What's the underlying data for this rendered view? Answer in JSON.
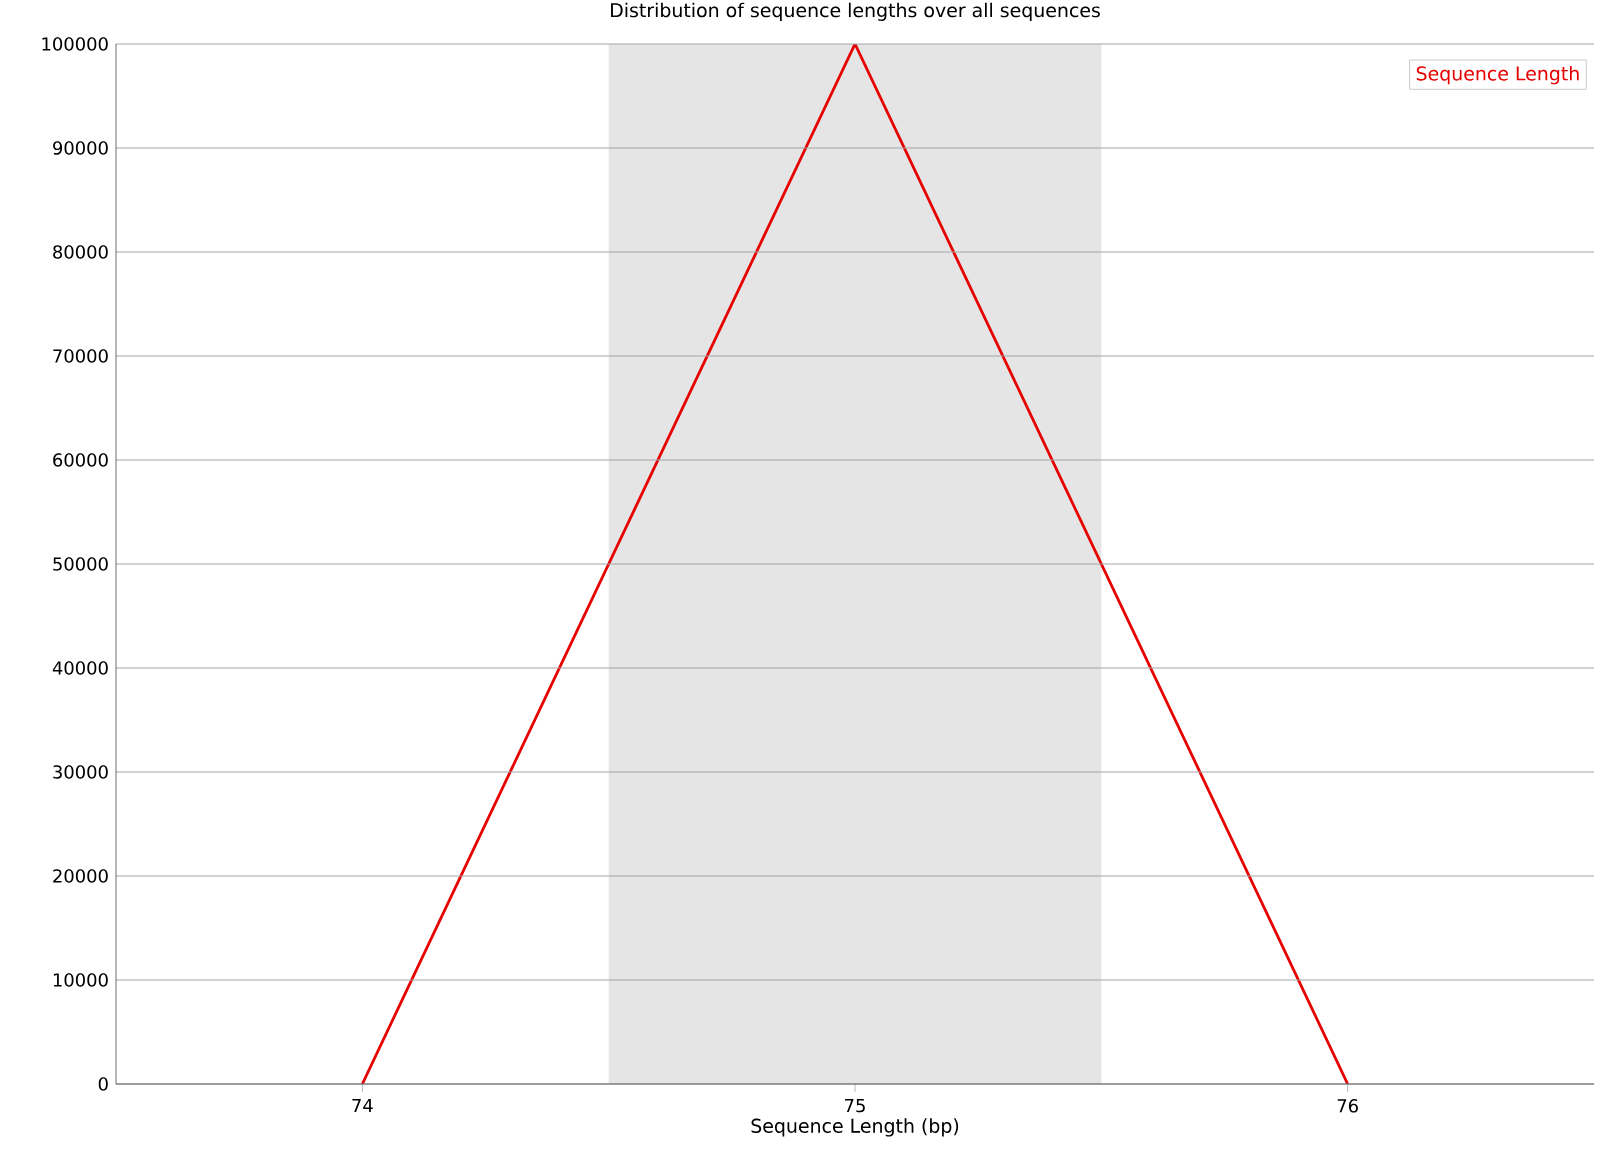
{
  "chart_data": {
    "type": "line",
    "title": "Distribution of sequence lengths over all sequences",
    "xlabel": "Sequence Length (bp)",
    "x": [
      74,
      75,
      76
    ],
    "series": [
      {
        "name": "Sequence Length",
        "color": "#e60000",
        "values": [
          0,
          100000,
          0
        ]
      }
    ],
    "xlim": [
      73.5,
      76.5
    ],
    "xticks": [
      74,
      75,
      76
    ],
    "ylim": [
      0,
      100000
    ],
    "yticks": [
      0,
      10000,
      20000,
      30000,
      40000,
      50000,
      60000,
      70000,
      80000,
      90000,
      100000
    ],
    "bands": [
      {
        "axis": "x",
        "from": 74.5,
        "to": 75.5,
        "color": "#e5e5e5"
      }
    ],
    "grid": "y",
    "legend": "top right",
    "marker": "none",
    "line_style": "solid"
  }
}
